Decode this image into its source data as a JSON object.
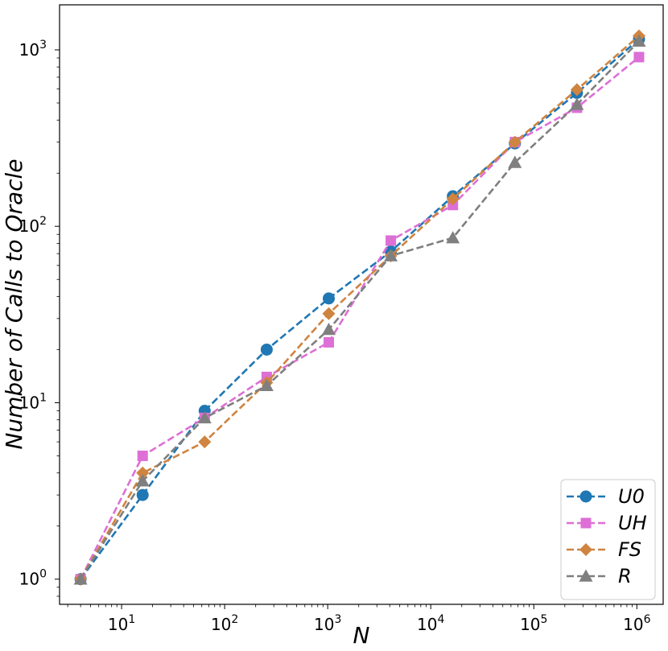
{
  "chart_data": {
    "type": "line",
    "xlabel": "N",
    "ylabel": "Number of Calls to Oracle",
    "xscale": "log",
    "yscale": "log",
    "xlim": [
      2.5,
      1800000
    ],
    "ylim": [
      0.72,
      1800
    ],
    "x_ticks": [
      {
        "value": 10,
        "base": "10",
        "exp": "1"
      },
      {
        "value": 100,
        "base": "10",
        "exp": "2"
      },
      {
        "value": 1000,
        "base": "10",
        "exp": "3"
      },
      {
        "value": 10000,
        "base": "10",
        "exp": "4"
      },
      {
        "value": 100000,
        "base": "10",
        "exp": "5"
      },
      {
        "value": 1000000,
        "base": "10",
        "exp": "6"
      }
    ],
    "y_ticks": [
      {
        "value": 1,
        "base": "10",
        "exp": "0"
      },
      {
        "value": 10,
        "base": "10",
        "exp": "1"
      },
      {
        "value": 100,
        "base": "10",
        "exp": "2"
      },
      {
        "value": 1000,
        "base": "10",
        "exp": "3"
      }
    ],
    "x": [
      4,
      16,
      64,
      256,
      1024,
      4096,
      16384,
      65536,
      262144,
      1048576
    ],
    "grid": false,
    "legend_position": "bottom-right",
    "series": [
      {
        "name": "U0",
        "color": "#1f77b4",
        "marker": "circle",
        "values": [
          1,
          3,
          9,
          20,
          39,
          72,
          148,
          295,
          570,
          1150
        ]
      },
      {
        "name": "UH",
        "color": "#dd6fd6",
        "marker": "square",
        "values": [
          1,
          5,
          8.2,
          14,
          22,
          83,
          132,
          300,
          470,
          910
        ]
      },
      {
        "name": "FS",
        "color": "#cf8440",
        "marker": "diamond",
        "values": [
          1,
          4,
          6,
          13,
          32,
          68,
          143,
          300,
          595,
          1200
        ]
      },
      {
        "name": "R",
        "color": "#7f7f7f",
        "marker": "triangle",
        "values": [
          1,
          3.6,
          8.2,
          12.5,
          26,
          68,
          86,
          230,
          490,
          1120
        ]
      }
    ]
  }
}
